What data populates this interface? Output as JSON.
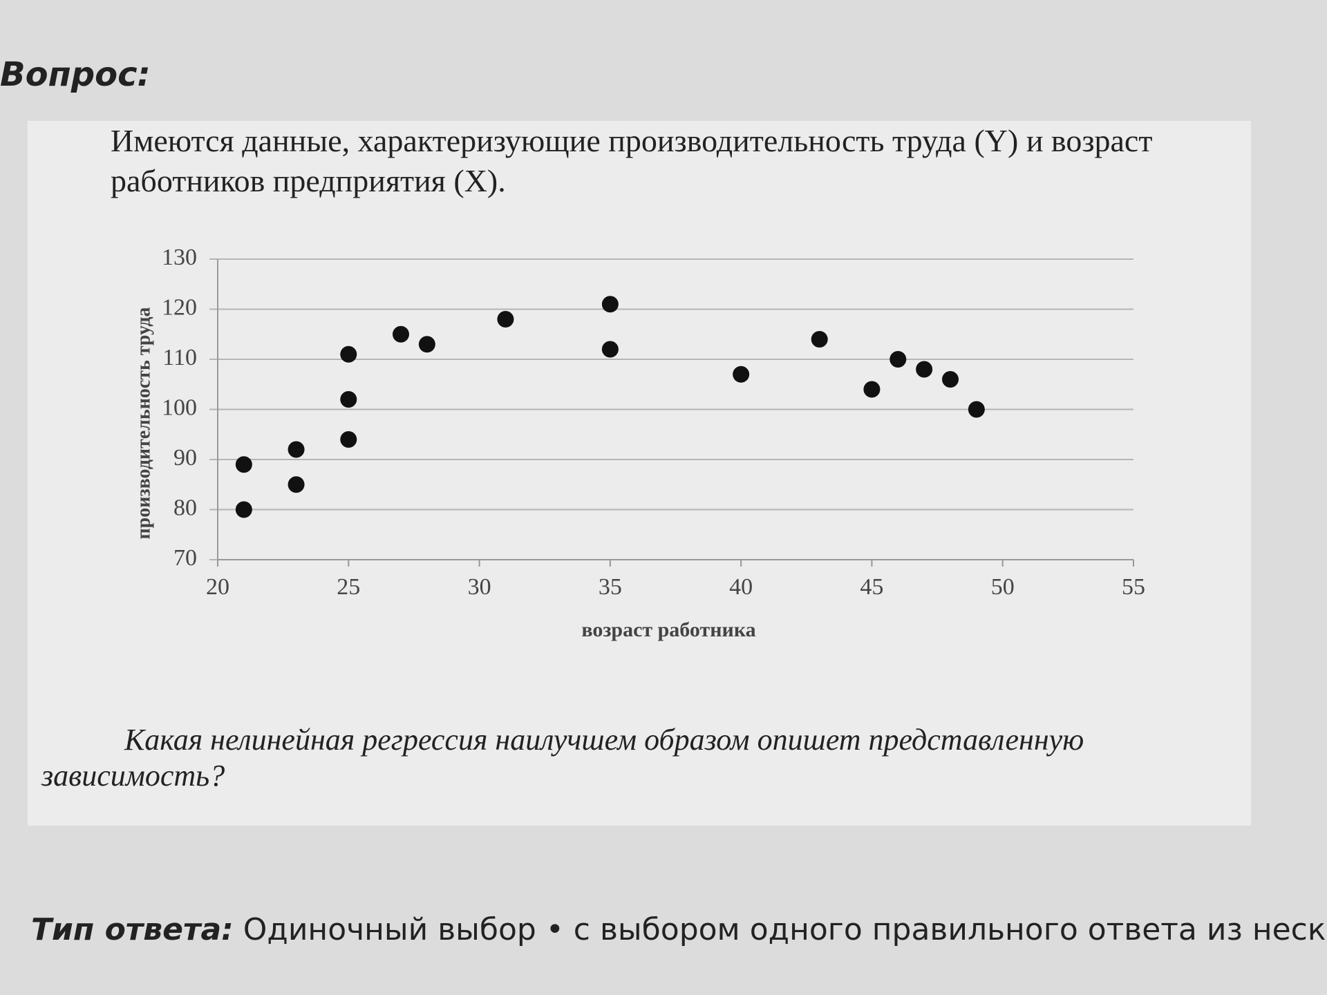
{
  "question_label": "Вопрос:",
  "question_text": "Имеются данные, характеризующие производительность труда (Y) и возраст работников предприятия (X).",
  "chart_data": {
    "type": "scatter",
    "xlabel": "возраст работника",
    "ylabel": "производительность труда",
    "x": [
      21,
      21,
      23,
      23,
      25,
      25,
      25,
      27,
      28,
      31,
      35,
      35,
      40,
      43,
      45,
      46,
      47,
      48,
      49
    ],
    "values": [
      89,
      80,
      92,
      85,
      111,
      102,
      94,
      115,
      113,
      118,
      121,
      112,
      107,
      114,
      104,
      110,
      108,
      106,
      100
    ],
    "color": "#111111",
    "xlim": [
      20,
      55
    ],
    "xticks": [
      20,
      25,
      30,
      35,
      40,
      45,
      50,
      55
    ],
    "ylim": [
      70,
      130
    ],
    "yticks": [
      70,
      80,
      90,
      100,
      110,
      120,
      130
    ],
    "grid": true
  },
  "prompt": "Какая нелинейная регрессия наилучшем образом опишет представленную зависимость?",
  "answer_type": {
    "label": "Тип ответа:",
    "value": "Одиночный выбор • с выбором одного правильного ответа из неско"
  }
}
